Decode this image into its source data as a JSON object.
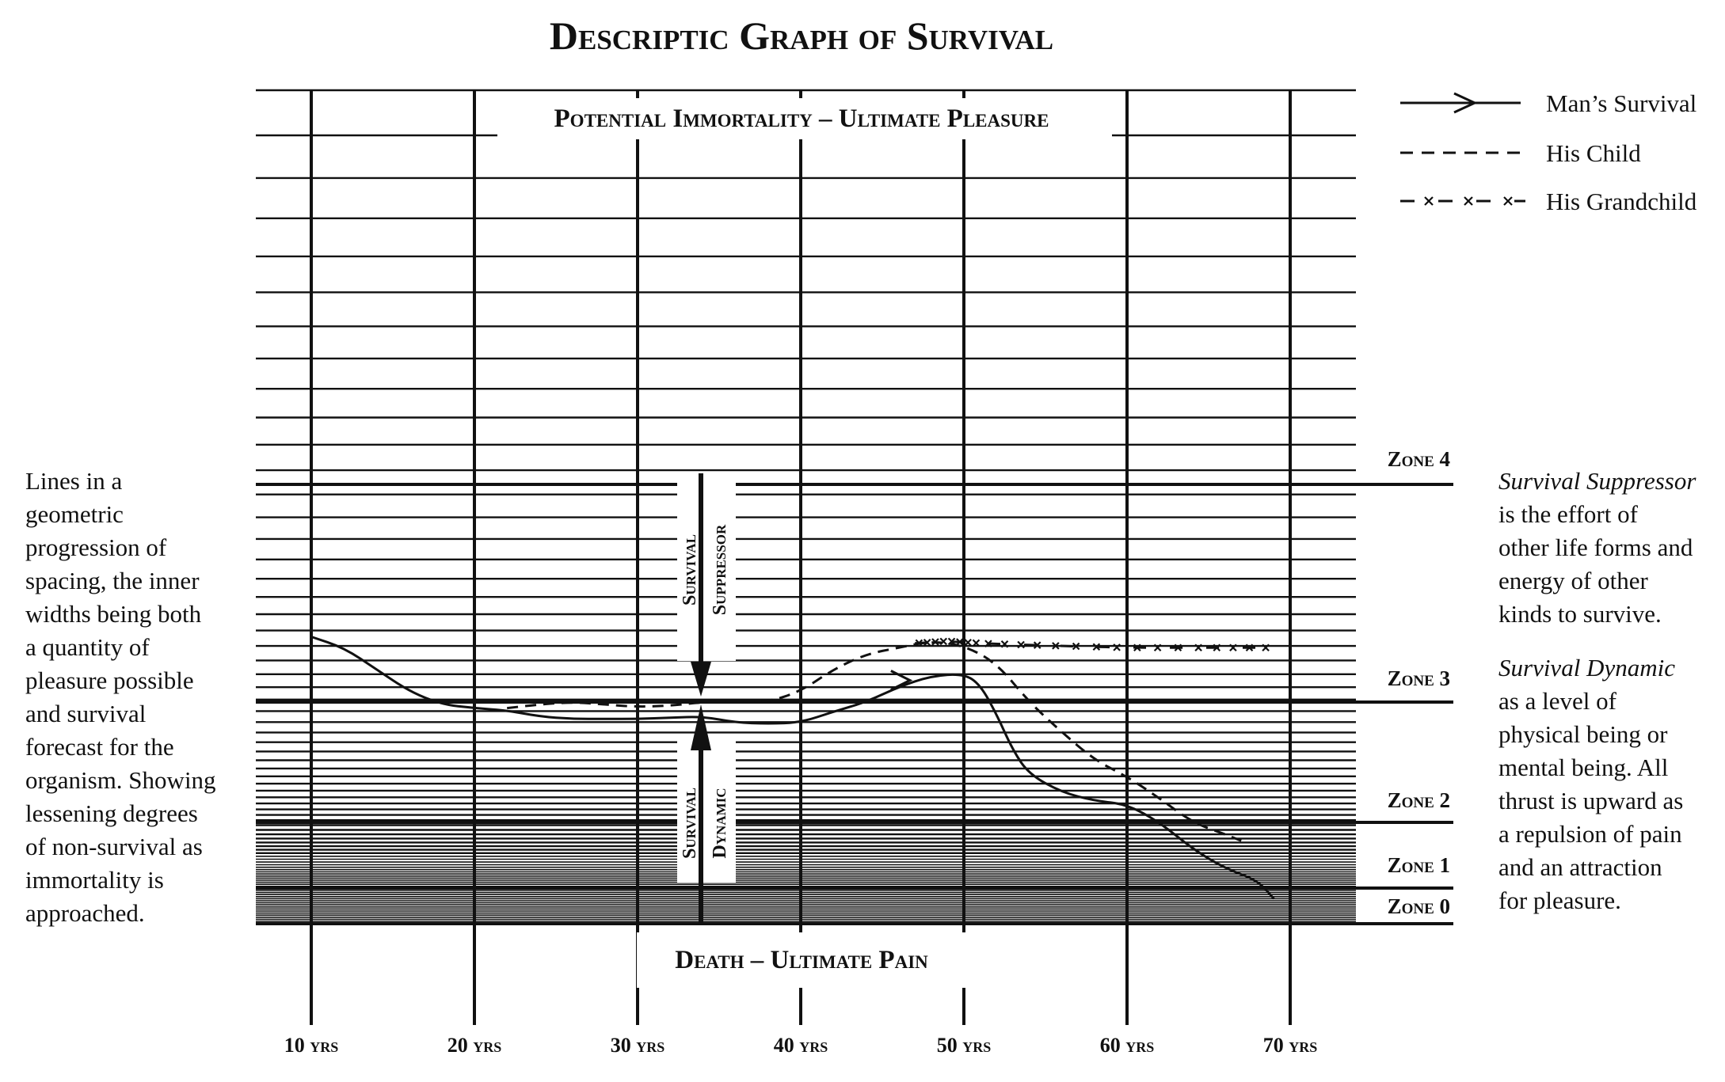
{
  "title": "Descriptic Graph of Survival",
  "top_label": "Potential Immortality – Ultimate Pleasure",
  "bottom_label": "Death – Ultimate Pain",
  "x_ticks": [
    "10 yrs",
    "20 yrs",
    "30 yrs",
    "40 yrs",
    "50 yrs",
    "60 yrs",
    "70 yrs"
  ],
  "zones": [
    {
      "label": "Zone 4",
      "level": 4
    },
    {
      "label": "Zone 3",
      "level": 3
    },
    {
      "label": "Zone 2",
      "level": 2
    },
    {
      "label": "Zone 1",
      "level": 1
    },
    {
      "label": "Zone 0",
      "level": 0
    }
  ],
  "legend": [
    {
      "label": "Man’s Survival",
      "style": "solid-arrow"
    },
    {
      "label": "His Child",
      "style": "dashed"
    },
    {
      "label": "His Grandchild",
      "style": "dash-x"
    }
  ],
  "arrows": {
    "suppressor": [
      "Survival",
      "Suppressor"
    ],
    "dynamic": [
      "Survival",
      "Dynamic"
    ]
  },
  "left_note": [
    "Lines in a",
    "geometric",
    "progression of",
    "spacing, the inner",
    "widths being both",
    "a quantity of",
    "pleasure possible",
    "and survival",
    "forecast for the",
    "organism. Showing",
    "lessening degrees",
    "of non-survival as",
    "immortality is",
    "approached."
  ],
  "right_note_1": {
    "title": "Survival Suppressor",
    "lines": [
      "is the effort of",
      "other life forms and",
      "energy of other",
      "kinds to survive."
    ]
  },
  "right_note_2": {
    "title": "Survival Dynamic",
    "lines": [
      "as a level of",
      "physical being or",
      "mental being. All",
      "thrust is upward as",
      "a repulsion of pain",
      "and an attraction",
      "for pleasure."
    ]
  },
  "chart_data": {
    "type": "line",
    "x_unit": "yrs",
    "xlim": [
      10,
      70
    ],
    "series": [
      {
        "name": "Man’s Survival",
        "style": "solid",
        "points": [
          [
            10,
            3.3
          ],
          [
            12,
            3.25
          ],
          [
            14,
            3.15
          ],
          [
            16,
            3.05
          ],
          [
            18,
            2.98
          ],
          [
            20,
            2.95
          ],
          [
            22,
            2.93
          ],
          [
            24,
            2.88
          ],
          [
            26,
            2.86
          ],
          [
            28,
            2.86
          ],
          [
            30,
            2.86
          ],
          [
            32,
            2.87
          ],
          [
            34,
            2.88
          ],
          [
            36,
            2.83
          ],
          [
            38,
            2.82
          ],
          [
            40,
            2.83
          ],
          [
            42,
            2.92
          ],
          [
            44,
            3.0
          ],
          [
            46,
            3.07
          ],
          [
            48,
            3.12
          ],
          [
            50,
            3.13
          ],
          [
            51,
            3.08
          ],
          [
            52,
            2.9
          ],
          [
            53,
            2.6
          ],
          [
            54,
            2.4
          ],
          [
            56,
            2.25
          ],
          [
            58,
            2.18
          ],
          [
            60,
            2.15
          ],
          [
            62,
            2.0
          ],
          [
            64,
            1.6
          ],
          [
            66,
            1.3
          ],
          [
            68,
            1.12
          ],
          [
            69,
            0.7
          ]
        ]
      },
      {
        "name": "His Child",
        "style": "dashed",
        "points": [
          [
            22,
            2.95
          ],
          [
            24,
            2.98
          ],
          [
            26,
            3.0
          ],
          [
            28,
            2.98
          ],
          [
            30,
            2.96
          ],
          [
            32,
            2.97
          ],
          [
            34,
            3.0
          ],
          [
            36,
            3.0
          ],
          [
            38,
            3.0
          ],
          [
            40,
            3.05
          ],
          [
            42,
            3.15
          ],
          [
            44,
            3.22
          ],
          [
            46,
            3.25
          ],
          [
            48,
            3.28
          ],
          [
            50,
            3.26
          ],
          [
            52,
            3.18
          ],
          [
            54,
            3.0
          ],
          [
            56,
            2.75
          ],
          [
            58,
            2.52
          ],
          [
            60,
            2.38
          ],
          [
            62,
            2.2
          ],
          [
            64,
            2.0
          ],
          [
            66,
            1.82
          ],
          [
            67,
            1.72
          ]
        ]
      },
      {
        "name": "His Grandchild",
        "style": "dash-x",
        "points": [
          [
            47,
            3.27
          ],
          [
            49,
            3.28
          ],
          [
            51,
            3.27
          ],
          [
            55,
            3.26
          ],
          [
            60,
            3.25
          ],
          [
            65,
            3.25
          ],
          [
            69,
            3.25
          ]
        ]
      }
    ]
  }
}
